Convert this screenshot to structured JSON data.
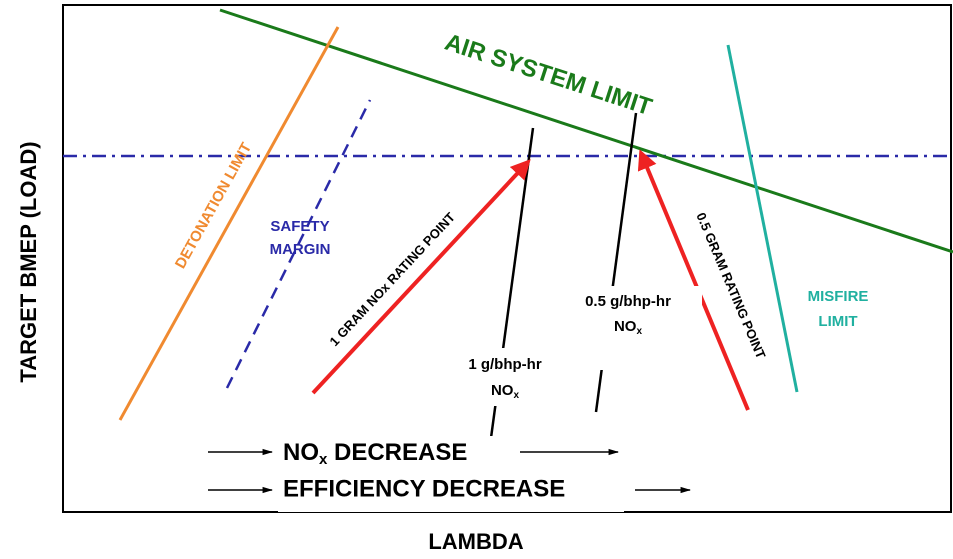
{
  "diagram": {
    "y_axis_label": "TARGET BMEP (LOAD)",
    "x_axis_label": "LAMBDA",
    "air_system_limit": "AIR SYSTEM LIMIT",
    "detonation_limit": "DETONATION LIMIT",
    "safety_margin": [
      "SAFETY",
      "MARGIN"
    ],
    "misfire_limit": [
      "MISFIRE",
      "LIMIT"
    ],
    "rating_point_1": "1 GRAM NOx RATING POINT",
    "rating_point_05": "0.5 GRAM RATING POINT",
    "nox_line_1": {
      "rate": "1 g/bhp-hr",
      "species": "NO",
      "sub": "x"
    },
    "nox_line_05": {
      "rate": "0.5 g/bhp-hr",
      "species": "NO",
      "sub": "x"
    },
    "trend_nox": {
      "species": "NO",
      "sub": "x",
      "text": " DECREASE"
    },
    "trend_efficiency": "EFFICIENCY DECREASE"
  }
}
